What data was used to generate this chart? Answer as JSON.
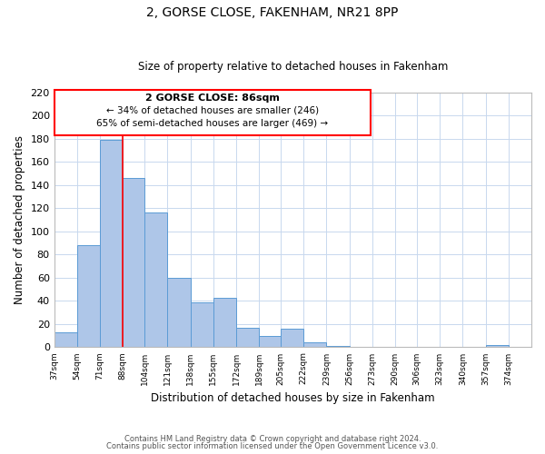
{
  "title": "2, GORSE CLOSE, FAKENHAM, NR21 8PP",
  "subtitle": "Size of property relative to detached houses in Fakenham",
  "xlabel": "Distribution of detached houses by size in Fakenham",
  "ylabel": "Number of detached properties",
  "bar_left_edges": [
    37,
    54,
    71,
    88,
    104,
    121,
    138,
    155,
    172,
    189,
    205,
    222,
    239,
    256,
    273,
    290,
    306,
    323,
    340,
    357
  ],
  "bar_widths": [
    17,
    17,
    17,
    16,
    17,
    17,
    17,
    17,
    17,
    16,
    17,
    17,
    17,
    17,
    17,
    16,
    17,
    17,
    17,
    17
  ],
  "bar_heights": [
    13,
    88,
    179,
    146,
    116,
    60,
    39,
    43,
    17,
    10,
    16,
    4,
    1,
    0,
    0,
    0,
    0,
    0,
    0,
    2
  ],
  "tick_labels": [
    "37sqm",
    "54sqm",
    "71sqm",
    "88sqm",
    "104sqm",
    "121sqm",
    "138sqm",
    "155sqm",
    "172sqm",
    "189sqm",
    "205sqm",
    "222sqm",
    "239sqm",
    "256sqm",
    "273sqm",
    "290sqm",
    "306sqm",
    "323sqm",
    "340sqm",
    "357sqm",
    "374sqm"
  ],
  "tick_positions": [
    37,
    54,
    71,
    88,
    104,
    121,
    138,
    155,
    172,
    189,
    205,
    222,
    239,
    256,
    273,
    290,
    306,
    323,
    340,
    357,
    374
  ],
  "ylim": [
    0,
    220
  ],
  "yticks": [
    0,
    20,
    40,
    60,
    80,
    100,
    120,
    140,
    160,
    180,
    200,
    220
  ],
  "bar_color": "#aec6e8",
  "bar_edge_color": "#5b9bd5",
  "red_line_x": 88,
  "annotation_title": "2 GORSE CLOSE: 86sqm",
  "annotation_line1": "← 34% of detached houses are smaller (246)",
  "annotation_line2": "65% of semi-detached houses are larger (469) →",
  "footer1": "Contains HM Land Registry data © Crown copyright and database right 2024.",
  "footer2": "Contains public sector information licensed under the Open Government Licence v3.0.",
  "background_color": "#ffffff",
  "grid_color": "#c8d8ee"
}
